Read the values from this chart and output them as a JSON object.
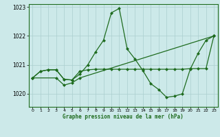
{
  "title": "Graphe pression niveau de la mer (hPa)",
  "background_color": "#cce9e9",
  "plot_bg_color": "#cce9e9",
  "line_color": "#1e6b1e",
  "grid_color": "#aacfcf",
  "ylim": [
    1019.55,
    1023.1
  ],
  "xlim": [
    -0.5,
    23.5
  ],
  "yticks": [
    1020,
    1021,
    1022,
    1023
  ],
  "xticks": [
    0,
    1,
    2,
    3,
    4,
    5,
    6,
    7,
    8,
    9,
    10,
    11,
    12,
    13,
    14,
    15,
    16,
    17,
    18,
    19,
    20,
    21,
    22,
    23
  ],
  "s1x": [
    0,
    1,
    2,
    3,
    4,
    5,
    6,
    7,
    8,
    9,
    10,
    11,
    12,
    13,
    14,
    15,
    16,
    17,
    18,
    19,
    20,
    21,
    22,
    23
  ],
  "s1y": [
    1020.55,
    1020.78,
    1020.83,
    1020.83,
    1020.5,
    1020.48,
    1020.68,
    1021.0,
    1021.45,
    1021.85,
    1022.8,
    1022.95,
    1021.55,
    1021.2,
    1020.8,
    1020.35,
    1020.15,
    1019.88,
    1019.92,
    1020.0,
    1020.85,
    1021.4,
    1021.85,
    1022.0
  ],
  "s2x": [
    0,
    1,
    2,
    3,
    4,
    5,
    6,
    7,
    8,
    9,
    10,
    11,
    12,
    13,
    14,
    15,
    16,
    17,
    18,
    19,
    20,
    21,
    22,
    23
  ],
  "s2y": [
    1020.55,
    1020.78,
    1020.83,
    1020.83,
    1020.5,
    1020.48,
    1020.78,
    1020.83,
    1020.85,
    1020.85,
    1020.85,
    1020.85,
    1020.85,
    1020.85,
    1020.85,
    1020.85,
    1020.85,
    1020.85,
    1020.85,
    1020.85,
    1020.87,
    1020.87,
    1020.87,
    1022.0
  ],
  "s3x": [
    0,
    3,
    4,
    5,
    6,
    23
  ],
  "s3y": [
    1020.55,
    1020.55,
    1020.3,
    1020.38,
    1020.55,
    1022.0
  ],
  "markersize": 2.5
}
